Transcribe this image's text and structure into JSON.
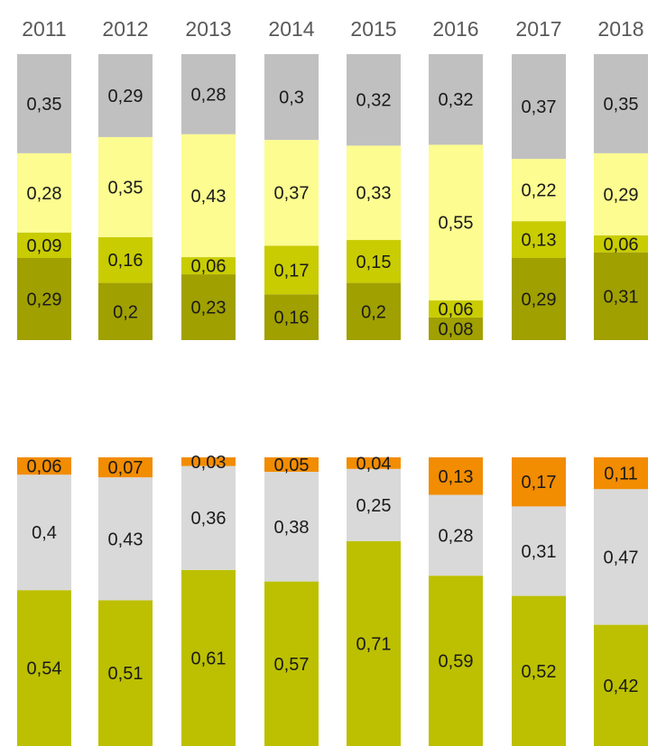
{
  "chart_data": [
    {
      "type": "bar",
      "stacked": true,
      "normalized": true,
      "categories": [
        "2011",
        "2012",
        "2013",
        "2014",
        "2015",
        "2016",
        "2017",
        "2018"
      ],
      "series": [
        {
          "color": "#a0a000",
          "values": [
            0.29,
            0.2,
            0.23,
            0.16,
            0.2,
            0.08,
            0.29,
            0.31
          ]
        },
        {
          "color": "#c8cc00",
          "values": [
            0.09,
            0.16,
            0.06,
            0.17,
            0.15,
            0.06,
            0.13,
            0.06
          ]
        },
        {
          "color": "#fcfc90",
          "values": [
            0.28,
            0.35,
            0.43,
            0.37,
            0.33,
            0.55,
            0.22,
            0.29
          ]
        },
        {
          "color": "#c0c0c0",
          "values": [
            0.35,
            0.29,
            0.28,
            0.3,
            0.32,
            0.32,
            0.37,
            0.35
          ]
        }
      ],
      "labels": [
        [
          "0,29",
          "0,2",
          "0,23",
          "0,16",
          "0,2",
          "0,08",
          "0,29",
          "0,31"
        ],
        [
          "0,09",
          "0,16",
          "0,06",
          "0,17",
          "0,15",
          "0,06",
          "0,13",
          "0,06"
        ],
        [
          "0,28",
          "0,35",
          "0,43",
          "0,37",
          "0,33",
          "0,55",
          "0,22",
          "0,29"
        ],
        [
          "0,35",
          "0,29",
          "0,28",
          "0,3",
          "0,32",
          "0,32",
          "0,37",
          "0,35"
        ]
      ],
      "legend": false,
      "grid": false
    },
    {
      "type": "bar",
      "stacked": true,
      "normalized": true,
      "categories": [
        "2011",
        "2012",
        "2013",
        "2014",
        "2015",
        "2016",
        "2017",
        "2018"
      ],
      "series": [
        {
          "color": "#bcc000",
          "values": [
            0.54,
            0.51,
            0.61,
            0.57,
            0.71,
            0.59,
            0.52,
            0.42
          ]
        },
        {
          "color": "#d9d9d9",
          "values": [
            0.4,
            0.43,
            0.36,
            0.38,
            0.25,
            0.28,
            0.31,
            0.47
          ]
        },
        {
          "color": "#f28c00",
          "values": [
            0.06,
            0.07,
            0.03,
            0.05,
            0.04,
            0.13,
            0.17,
            0.11
          ]
        }
      ],
      "labels": [
        [
          "0,54",
          "0,51",
          "0,61",
          "0,57",
          "0,71",
          "0,59",
          "0,52",
          "0,42"
        ],
        [
          "0,4",
          "0,43",
          "0,36",
          "0,38",
          "0,25",
          "0,28",
          "0,31",
          "0,47"
        ],
        [
          "0,06",
          "0,07",
          "0,03",
          "0,05",
          "0,04",
          "0,13",
          "0,17",
          "0,11"
        ]
      ],
      "legend": false,
      "grid": false
    }
  ]
}
